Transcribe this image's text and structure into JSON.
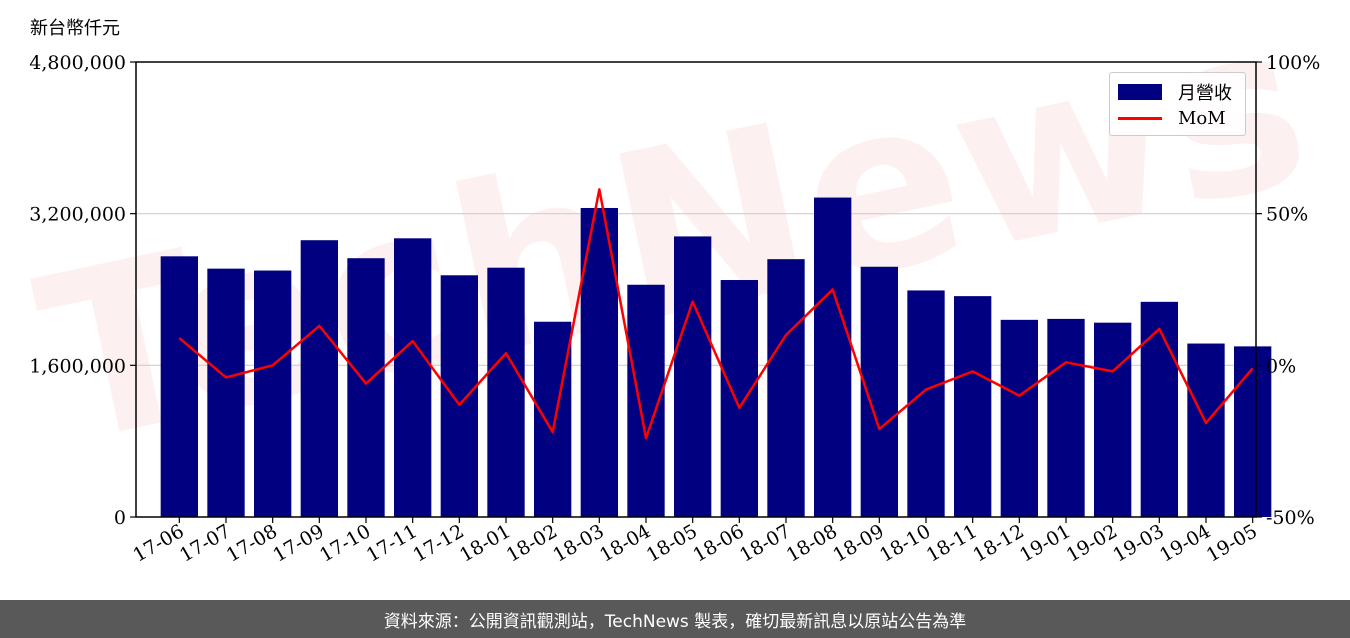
{
  "chart_data": {
    "type": "bar",
    "unit_label": "新台幣仟元",
    "categories": [
      "17-06",
      "17-07",
      "17-08",
      "17-09",
      "17-10",
      "17-11",
      "17-12",
      "18-01",
      "18-02",
      "18-03",
      "18-04",
      "18-05",
      "18-06",
      "18-07",
      "18-08",
      "18-09",
      "18-10",
      "18-11",
      "18-12",
      "19-01",
      "19-02",
      "19-03",
      "19-04",
      "19-05"
    ],
    "series": [
      {
        "name": "月營收",
        "axis": "left",
        "kind": "bar",
        "color": "#000080",
        "values": [
          2750000,
          2620000,
          2600000,
          2920000,
          2730000,
          2940000,
          2550000,
          2630000,
          2060000,
          3260000,
          2450000,
          2960000,
          2500000,
          2720000,
          3370000,
          2640000,
          2390000,
          2330000,
          2080000,
          2090000,
          2050000,
          2270000,
          1830000,
          1800000
        ]
      },
      {
        "name": "MoM",
        "axis": "right",
        "kind": "line",
        "color": "#ff0000",
        "values": [
          9,
          -4,
          0,
          13,
          -6,
          8,
          -13,
          4,
          -22,
          58,
          -24,
          21,
          -14,
          10,
          25,
          -21,
          -8,
          -2,
          -10,
          1,
          -2,
          12,
          -19,
          -1
        ]
      }
    ],
    "y_left": {
      "lim": [
        0,
        4800000
      ],
      "ticks": [
        "0",
        "1,600,000",
        "3,200,000",
        "4,800,000"
      ],
      "tick_values": [
        0,
        1600000,
        3200000,
        4800000
      ]
    },
    "y_right": {
      "lim": [
        -50,
        100
      ],
      "ticks": [
        "-50%",
        "0%",
        "50%",
        "100%"
      ],
      "tick_values": [
        -50,
        0,
        50,
        100
      ]
    },
    "grid": "horizontal",
    "legend_position": "top-right",
    "watermark": "TechNews"
  },
  "footer": {
    "source_text": "資料來源：公開資訊觀測站，TechNews 製表，確切最新訊息以原站公告為準"
  }
}
